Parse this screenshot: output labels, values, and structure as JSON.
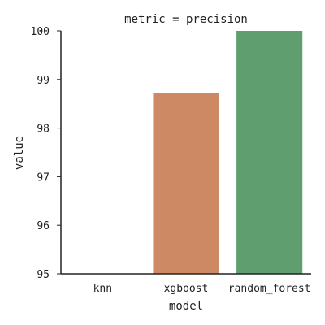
{
  "chart_data": {
    "type": "bar",
    "title": "metric = precision",
    "xlabel": "model",
    "ylabel": "value",
    "categories": [
      "knn",
      "xgboost",
      "random_forest"
    ],
    "values": [
      95.0,
      98.72,
      100.0
    ],
    "colors": [
      "#4c72b0",
      "#cc8963",
      "#5f9e6e"
    ],
    "ylim": [
      95,
      100
    ],
    "yticks": [
      "95",
      "96",
      "97",
      "98",
      "99",
      "100"
    ],
    "grid": false,
    "legend": "none"
  }
}
